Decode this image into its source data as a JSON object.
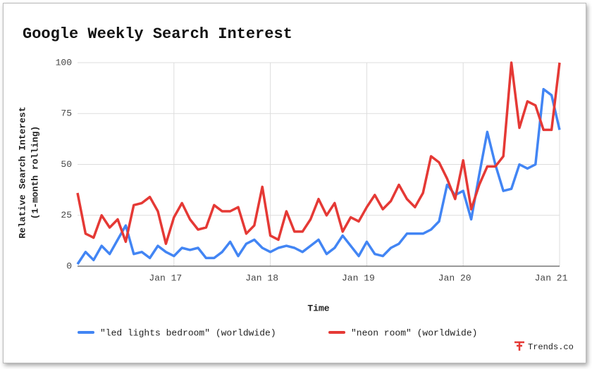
{
  "chart_data": {
    "type": "line",
    "title": "Google Weekly Search Interest",
    "y_label": [
      "Relative Search Interest",
      "(1-month rolling)"
    ],
    "x_label": "Time",
    "categories": [
      null,
      null,
      null,
      null,
      null,
      null,
      null,
      null,
      null,
      null,
      null,
      null,
      "Jan 17",
      null,
      null,
      null,
      null,
      null,
      null,
      null,
      null,
      null,
      null,
      null,
      "Jan 18",
      null,
      null,
      null,
      null,
      null,
      null,
      null,
      null,
      null,
      null,
      null,
      "Jan 19",
      null,
      null,
      null,
      null,
      null,
      null,
      null,
      null,
      null,
      null,
      null,
      "Jan 20",
      null,
      null,
      null,
      null,
      null,
      null,
      null,
      null,
      null,
      null,
      null,
      "Jan 21"
    ],
    "series": [
      {
        "name": "\"led lights bedroom\" (worldwide)",
        "color": "#4285f4",
        "values": [
          1,
          7,
          3,
          10,
          6,
          13,
          20,
          6,
          7,
          4,
          10,
          7,
          5,
          9,
          8,
          9,
          4,
          4,
          7,
          12,
          5,
          11,
          13,
          9,
          7,
          9,
          10,
          9,
          7,
          10,
          13,
          6,
          9,
          15,
          10,
          5,
          12,
          6,
          5,
          9,
          11,
          16,
          16,
          16,
          18,
          22,
          40,
          35,
          37,
          23,
          45,
          66,
          50,
          37,
          38,
          50,
          48,
          50,
          87,
          84,
          67
        ]
      },
      {
        "name": "\"neon room\" (worldwide)",
        "color": "#e53935",
        "values": [
          36,
          16,
          14,
          25,
          19,
          23,
          12,
          30,
          31,
          34,
          27,
          11,
          24,
          31,
          23,
          18,
          19,
          30,
          27,
          27,
          29,
          16,
          20,
          39,
          15,
          13,
          27,
          17,
          17,
          23,
          33,
          25,
          31,
          17,
          24,
          22,
          29,
          35,
          28,
          32,
          40,
          33,
          29,
          36,
          54,
          51,
          43,
          33,
          52,
          28,
          40,
          49,
          49,
          54,
          100,
          68,
          81,
          79,
          67,
          67,
          100
        ]
      }
    ],
    "ylim": [
      0,
      100
    ],
    "yticks": [
      0,
      25,
      50,
      75,
      100
    ],
    "grid": true,
    "legend": "bottom",
    "watermark": "Trends.co"
  }
}
